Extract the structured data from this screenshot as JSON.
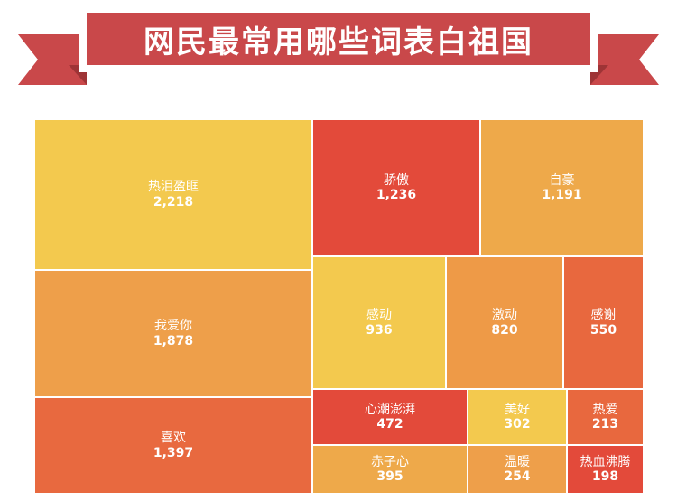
{
  "title": "网民最常用哪些词表白祖国",
  "colors": {
    "banner": "#c9484a",
    "banner_dark": "#9e3436",
    "banner_border": "#ffffff"
  },
  "chart_data": {
    "type": "treemap",
    "title": "网民最常用哪些词表白祖国",
    "items": [
      {
        "label": "热泪盈眶",
        "value": 2218,
        "value_text": "2,218",
        "color": "#f3c94e"
      },
      {
        "label": "我爱你",
        "value": 1878,
        "value_text": "1,878",
        "color": "#ee9f4a"
      },
      {
        "label": "喜欢",
        "value": 1397,
        "value_text": "1,397",
        "color": "#e8693f"
      },
      {
        "label": "骄傲",
        "value": 1236,
        "value_text": "1,236",
        "color": "#e34a3a"
      },
      {
        "label": "自豪",
        "value": 1191,
        "value_text": "1,191",
        "color": "#eea94a"
      },
      {
        "label": "感动",
        "value": 936,
        "value_text": "936",
        "color": "#f3c94e"
      },
      {
        "label": "激动",
        "value": 820,
        "value_text": "820",
        "color": "#ee9a47"
      },
      {
        "label": "感谢",
        "value": 550,
        "value_text": "550",
        "color": "#e8683e"
      },
      {
        "label": "心潮澎湃",
        "value": 472,
        "value_text": "472",
        "color": "#e34a3a"
      },
      {
        "label": "美好",
        "value": 302,
        "value_text": "302",
        "color": "#f3c94e"
      },
      {
        "label": "热爱",
        "value": 213,
        "value_text": "213",
        "color": "#e8683e"
      },
      {
        "label": "赤子心",
        "value": 395,
        "value_text": "395",
        "color": "#eea94a"
      },
      {
        "label": "温暖",
        "value": 254,
        "value_text": "254",
        "color": "#ee9f4a"
      },
      {
        "label": "热血沸腾",
        "value": 198,
        "value_text": "198",
        "color": "#e34a3a"
      }
    ]
  }
}
